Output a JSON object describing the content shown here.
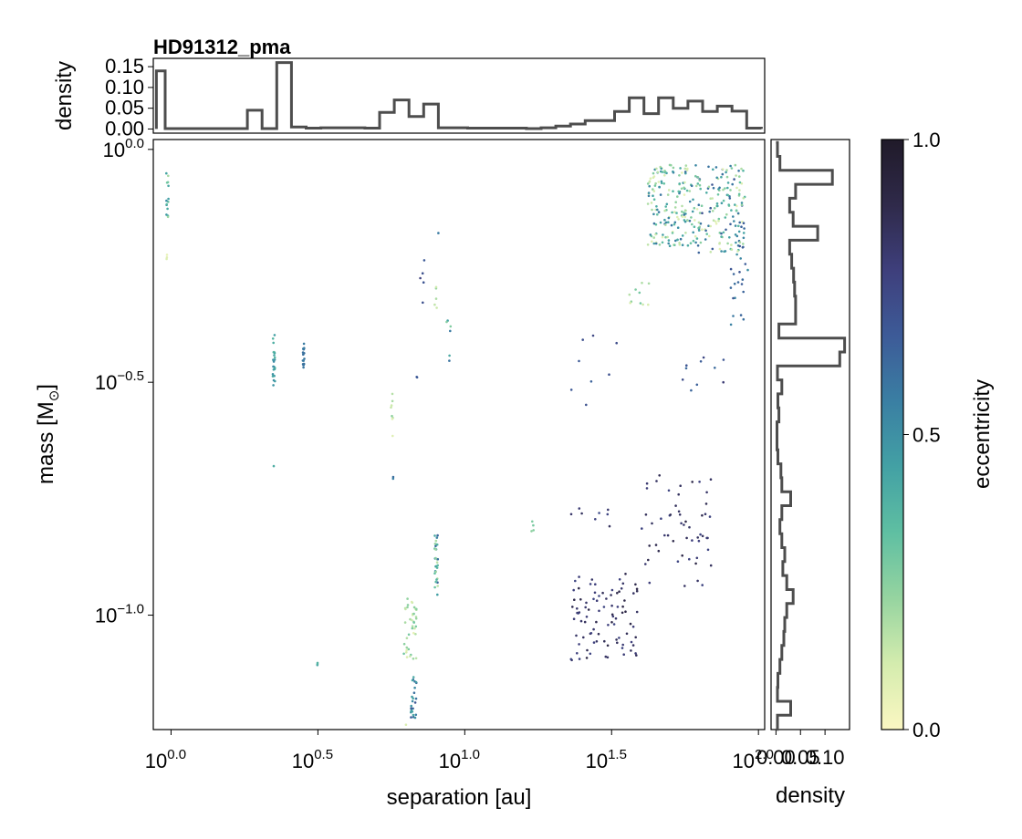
{
  "chart_data": {
    "title": "HD91312_pma",
    "type": "scatter",
    "colors": {
      "histogram": "#4d4d4d",
      "axis": "#000000",
      "colormap": [
        "#fbf7c2",
        "#d4ecae",
        "#96d4a0",
        "#5fbfa2",
        "#43a1a4",
        "#3a7fa3",
        "#3d5b98",
        "#3e3f7c",
        "#2f2a4a",
        "#201a29"
      ]
    },
    "main": {
      "xlabel": "separation [au]",
      "ylabel_main": "mass [M",
      "ylabel_sub": "⊙",
      "ylabel_close": "]",
      "x_scale": "log",
      "y_scale": "log",
      "xlim": [
        0.87,
        105
      ],
      "ylim": [
        0.0568,
        1.05
      ],
      "x_ticks": [
        {
          "value": 1,
          "base": "10",
          "exp": "0.0"
        },
        {
          "value": 3.1623,
          "base": "10",
          "exp": "0.5"
        },
        {
          "value": 10,
          "base": "10",
          "exp": "1.0"
        },
        {
          "value": 31.623,
          "base": "10",
          "exp": "1.5"
        },
        {
          "value": 100,
          "base": "10",
          "exp": "2.0"
        }
      ],
      "y_ticks": [
        {
          "value": 1,
          "base": "10",
          "exp": "0.0"
        },
        {
          "value": 0.31623,
          "base": "10",
          "exp": "−0.5"
        },
        {
          "value": 0.1,
          "base": "10",
          "exp": "−1.0"
        }
      ],
      "clusters": [
        {
          "x": [
            0.96,
            0.98
          ],
          "y": [
            0.68,
            0.92
          ],
          "e": [
            0.15,
            0.55
          ],
          "n": 14
        },
        {
          "x": [
            0.96,
            0.97
          ],
          "y": [
            0.58,
            0.6
          ],
          "e": [
            0.05,
            0.1
          ],
          "n": 3
        },
        {
          "x": [
            2.22,
            2.26
          ],
          "y": [
            0.3,
            0.4
          ],
          "e": [
            0.35,
            0.55
          ],
          "n": 22
        },
        {
          "x": [
            2.22,
            2.24
          ],
          "y": [
            0.205,
            0.21
          ],
          "e": [
            0.3,
            0.4
          ],
          "n": 1
        },
        {
          "x": [
            2.81,
            2.85
          ],
          "y": [
            0.34,
            0.39
          ],
          "e": [
            0.55,
            0.6
          ],
          "n": 18
        },
        {
          "x": [
            3.14,
            3.18
          ],
          "y": [
            0.077,
            0.079
          ],
          "e": [
            0.35,
            0.45
          ],
          "n": 3
        },
        {
          "x": [
            5.55,
            5.72
          ],
          "y": [
            0.24,
            0.34
          ],
          "e": [
            0.05,
            0.25
          ],
          "n": 8
        },
        {
          "x": [
            5.55,
            5.72
          ],
          "y": [
            0.195,
            0.2
          ],
          "e": [
            0.55,
            0.7
          ],
          "n": 2
        },
        {
          "x": [
            6.2,
            6.85
          ],
          "y": [
            0.08,
            0.11
          ],
          "e": [
            0.05,
            0.3
          ],
          "n": 40
        },
        {
          "x": [
            6.55,
            6.85
          ],
          "y": [
            0.06,
            0.075
          ],
          "e": [
            0.4,
            0.7
          ],
          "n": 25
        },
        {
          "x": [
            6.25,
            6.45
          ],
          "y": [
            0.058,
            0.06
          ],
          "e": [
            0.08,
            0.12
          ],
          "n": 1
        },
        {
          "x": [
            7.05,
            7.35
          ],
          "y": [
            0.45,
            0.6
          ],
          "e": [
            0.6,
            0.8
          ],
          "n": 5
        },
        {
          "x": [
            6.82,
            6.95
          ],
          "y": [
            0.32,
            0.33
          ],
          "e": [
            0.55,
            0.7
          ],
          "n": 2
        },
        {
          "x": [
            7.9,
            8.1
          ],
          "y": [
            0.11,
            0.15
          ],
          "e": [
            0.15,
            0.65
          ],
          "n": 30
        },
        {
          "x": [
            7.9,
            8.05
          ],
          "y": [
            0.44,
            0.52
          ],
          "e": [
            0.1,
            0.25
          ],
          "n": 5
        },
        {
          "x": [
            8.05,
            8.15
          ],
          "y": [
            0.66,
            0.67
          ],
          "e": [
            0.5,
            0.6
          ],
          "n": 1
        },
        {
          "x": [
            8.6,
            8.95
          ],
          "y": [
            0.35,
            0.44
          ],
          "e": [
            0.1,
            0.65
          ],
          "n": 6
        },
        {
          "x": [
            16.8,
            17.3
          ],
          "y": [
            0.15,
            0.16
          ],
          "e": [
            0.2,
            0.4
          ],
          "n": 4
        },
        {
          "x": [
            23,
            33
          ],
          "y": [
            0.27,
            0.4
          ],
          "e": [
            0.6,
            0.75
          ],
          "n": 8
        },
        {
          "x": [
            22,
            32
          ],
          "y": [
            0.155,
            0.17
          ],
          "e": [
            0.7,
            0.85
          ],
          "n": 8
        },
        {
          "x": [
            23,
            40
          ],
          "y": [
            0.08,
            0.125
          ],
          "e": [
            0.75,
            0.9
          ],
          "n": 90
        },
        {
          "x": [
            40,
            70
          ],
          "y": [
            0.115,
            0.2
          ],
          "e": [
            0.75,
            0.9
          ],
          "n": 55
        },
        {
          "x": [
            50,
            78
          ],
          "y": [
            0.3,
            0.36
          ],
          "e": [
            0.6,
            0.8
          ],
          "n": 10
        },
        {
          "x": [
            36,
            44
          ],
          "y": [
            0.43,
            0.53
          ],
          "e": [
            0.05,
            0.3
          ],
          "n": 10
        },
        {
          "x": [
            42,
            60
          ],
          "y": [
            0.62,
            0.93
          ],
          "e": [
            0.05,
            0.6
          ],
          "n": 160
        },
        {
          "x": [
            60,
            90
          ],
          "y": [
            0.6,
            0.93
          ],
          "e": [
            0.05,
            0.7
          ],
          "n": 150
        },
        {
          "x": [
            80,
            92
          ],
          "y": [
            0.42,
            0.7
          ],
          "e": [
            0.5,
            0.7
          ],
          "n": 30
        }
      ]
    },
    "top_histogram": {
      "ylabel": "density",
      "ylim": [
        -0.01,
        0.17
      ],
      "y_ticks": [
        "0.00",
        "0.05",
        "0.10",
        "0.15"
      ],
      "y_tick_values": [
        0,
        0.05,
        0.1,
        0.15
      ],
      "bin_edges_log10": [
        -0.05,
        -0.02,
        0.26,
        0.31,
        0.36,
        0.41,
        0.46,
        0.51,
        0.56,
        0.61,
        0.66,
        0.71,
        0.76,
        0.81,
        0.86,
        0.91,
        0.96,
        1.01,
        1.06,
        1.11,
        1.16,
        1.21,
        1.26,
        1.31,
        1.36,
        1.41,
        1.46,
        1.51,
        1.56,
        1.61,
        1.66,
        1.71,
        1.76,
        1.81,
        1.86,
        1.91,
        1.96,
        2.01
      ],
      "densities": [
        0.14,
        0.001,
        0.045,
        0.001,
        0.16,
        0.005,
        0.002,
        0.003,
        0.003,
        0.003,
        0.002,
        0.04,
        0.07,
        0.03,
        0.06,
        0.003,
        0.003,
        0.002,
        0.002,
        0.002,
        0.002,
        0.001,
        0.003,
        0.007,
        0.012,
        0.02,
        0.02,
        0.042,
        0.075,
        0.037,
        0.075,
        0.05,
        0.067,
        0.042,
        0.055,
        0.043,
        0.002
      ]
    },
    "right_histogram": {
      "xlabel": "density",
      "xlim": [
        -0.01,
        0.15
      ],
      "x_ticks": [
        "0.00",
        "0.05",
        "0.10"
      ],
      "x_tick_values": [
        0,
        0.05,
        0.1
      ],
      "bin_edges_log10": [
        -1.245,
        -1.215,
        -1.185,
        -1.155,
        -1.125,
        -1.095,
        -1.065,
        -1.035,
        -1.005,
        -0.975,
        -0.945,
        -0.915,
        -0.885,
        -0.855,
        -0.825,
        -0.795,
        -0.765,
        -0.735,
        -0.705,
        -0.675,
        -0.645,
        -0.615,
        -0.585,
        -0.555,
        -0.525,
        -0.495,
        -0.465,
        -0.435,
        -0.405,
        -0.375,
        -0.345,
        -0.315,
        -0.285,
        -0.255,
        -0.225,
        -0.195,
        -0.165,
        -0.135,
        -0.105,
        -0.075,
        -0.045,
        -0.015,
        0.015
      ],
      "densities": [
        0.003,
        0.03,
        0.003,
        0.004,
        0.008,
        0.012,
        0.016,
        0.018,
        0.022,
        0.035,
        0.022,
        0.014,
        0.018,
        0.012,
        0.008,
        0.012,
        0.03,
        0.012,
        0.01,
        0.004,
        0.002,
        0.002,
        0.006,
        0.004,
        0.012,
        0.003,
        0.13,
        0.14,
        0.006,
        0.04,
        0.04,
        0.038,
        0.036,
        0.032,
        0.028,
        0.085,
        0.035,
        0.028,
        0.04,
        0.115,
        0.008,
        0.003
      ]
    },
    "colorbar": {
      "label": "eccentricity",
      "range": [
        0,
        1
      ],
      "ticks": [
        "0.0",
        "0.5",
        "1.0"
      ],
      "tick_values": [
        0,
        0.5,
        1
      ]
    }
  }
}
